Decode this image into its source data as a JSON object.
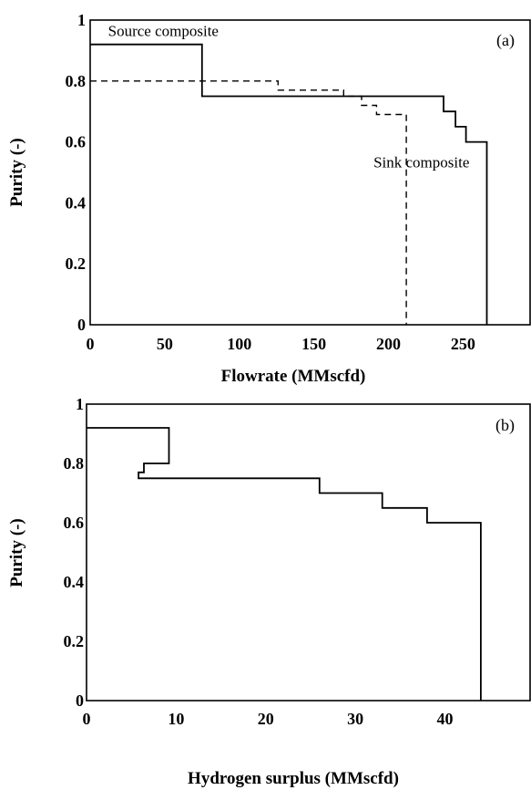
{
  "chart_data": [
    {
      "panel": "(a)",
      "type": "line",
      "xlabel": "Flowrate (MMscfd)",
      "ylabel": "Purity (-)",
      "xlim": [
        0,
        295
      ],
      "ylim": [
        0,
        1
      ],
      "x_ticks": [
        "0",
        "50",
        "100",
        "150",
        "200",
        "250"
      ],
      "x_tick_values": [
        0,
        50,
        100,
        150,
        200,
        250
      ],
      "y_ticks": [
        "0",
        "0.2",
        "0.4",
        "0.6",
        "0.8",
        "1"
      ],
      "y_tick_values": [
        0,
        0.2,
        0.4,
        0.6,
        0.8,
        1
      ],
      "grid": false,
      "series": [
        {
          "name": "Source composite",
          "style": "solid",
          "x": [
            0,
            75,
            75,
            237,
            237,
            245,
            245,
            252,
            252,
            260,
            260,
            266,
            266
          ],
          "y": [
            0.92,
            0.92,
            0.75,
            0.75,
            0.7,
            0.7,
            0.65,
            0.65,
            0.6,
            0.6,
            0.6,
            0.6,
            0
          ]
        },
        {
          "name": "Sink composite",
          "style": "dashed",
          "x": [
            0,
            126,
            126,
            170,
            170,
            182,
            182,
            192,
            192,
            201,
            201,
            212,
            212
          ],
          "y": [
            0.8,
            0.8,
            0.77,
            0.77,
            0.75,
            0.75,
            0.72,
            0.72,
            0.69,
            0.69,
            0.69,
            0.69,
            0
          ]
        }
      ],
      "annotations": [
        {
          "text": "Source composite",
          "x": 12,
          "y": 0.965
        },
        {
          "text": "Sink composite",
          "x": 190,
          "y": 0.535
        }
      ]
    },
    {
      "panel": "(b)",
      "type": "line",
      "xlabel": "Hydrogen surplus (MMscfd)",
      "ylabel": "Purity (-)",
      "xlim": [
        0,
        49.5
      ],
      "ylim": [
        0,
        1
      ],
      "x_ticks": [
        "0",
        "10",
        "20",
        "30",
        "40"
      ],
      "x_tick_values": [
        0,
        10,
        20,
        30,
        40
      ],
      "y_ticks": [
        "0",
        "0.2",
        "0.4",
        "0.6",
        "0.8",
        "1"
      ],
      "y_tick_values": [
        0,
        0.2,
        0.4,
        0.6,
        0.8,
        1
      ],
      "grid": false,
      "series": [
        {
          "name": "",
          "style": "solid",
          "x": [
            0,
            9.2,
            9.2,
            6.4,
            6.4,
            5.8,
            5.8,
            26,
            26,
            33,
            33,
            38,
            38,
            44,
            44
          ],
          "y": [
            0.92,
            0.92,
            0.8,
            0.8,
            0.77,
            0.77,
            0.75,
            0.75,
            0.7,
            0.7,
            0.65,
            0.65,
            0.6,
            0.6,
            0
          ]
        }
      ],
      "annotations": []
    }
  ]
}
